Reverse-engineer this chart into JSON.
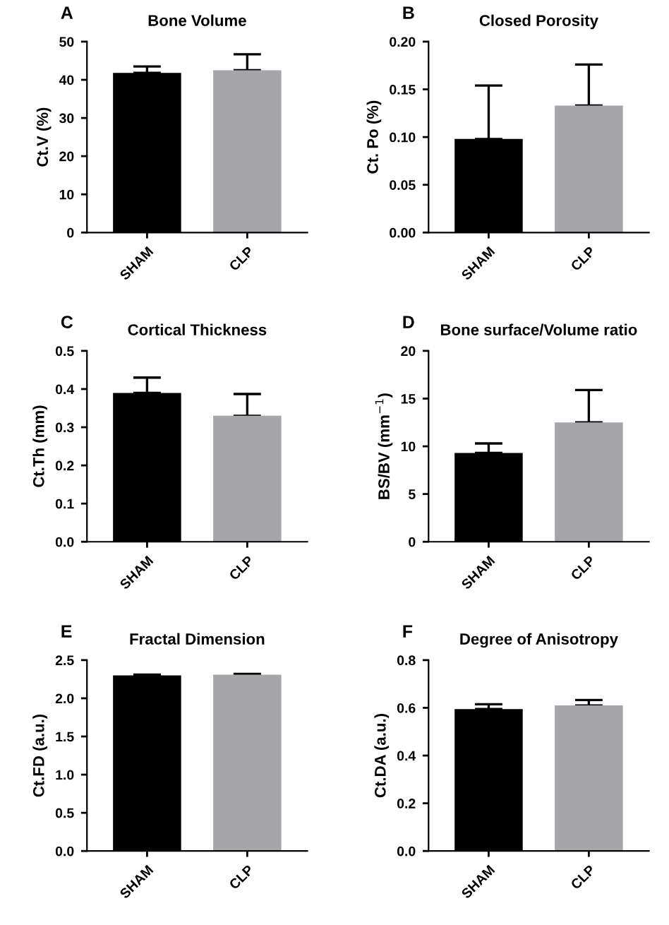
{
  "chart_data": [
    {
      "type": "bar",
      "title": "Bone Volume",
      "annotations": [
        "A"
      ],
      "ylabel": "Ct.V (%)",
      "categories": [
        "SHAM",
        "CLP"
      ],
      "values": [
        41.8,
        42.5
      ],
      "colors": [
        "#000000",
        "#a6a6a8"
      ],
      "errors": [
        [
          41.8,
          43.5
        ],
        [
          42.5,
          46.7
        ]
      ],
      "ylim": [
        0,
        50
      ],
      "yticks": [
        0,
        10,
        20,
        30,
        40,
        50
      ],
      "grid": false,
      "legend": false
    },
    {
      "type": "bar",
      "title": "Closed Porosity",
      "annotations": [
        "B"
      ],
      "ylabel": "Ct. Po (%)",
      "categories": [
        "SHAM",
        "CLP"
      ],
      "values": [
        0.098,
        0.133
      ],
      "colors": [
        "#000000",
        "#a6a6a8"
      ],
      "errors": [
        [
          0.098,
          0.154
        ],
        [
          0.133,
          0.176
        ]
      ],
      "ylim": [
        0,
        0.2
      ],
      "yticks": [
        {
          "value": 0,
          "label": "0.00"
        },
        {
          "value": 0.05,
          "label": "0.05"
        },
        {
          "value": 0.1,
          "label": "0.10"
        },
        {
          "value": 0.15,
          "label": "0.15"
        },
        {
          "value": 0.2,
          "label": "0.20"
        }
      ],
      "grid": false,
      "legend": false
    },
    {
      "type": "bar",
      "title": "Cortical Thickness",
      "annotations": [
        "C"
      ],
      "ylabel": "Ct.Th (mm)",
      "categories": [
        "SHAM",
        "CLP"
      ],
      "values": [
        0.39,
        0.33
      ],
      "colors": [
        "#000000",
        "#a6a6a8"
      ],
      "errors": [
        [
          0.39,
          0.43
        ],
        [
          0.33,
          0.387
        ]
      ],
      "ylim": [
        0,
        0.5
      ],
      "yticks": [
        {
          "value": 0,
          "label": "0.0"
        },
        0.1,
        0.2,
        0.3,
        0.4,
        0.5
      ],
      "grid": false,
      "legend": false
    },
    {
      "type": "bar",
      "title": "Bone surface/Volume ratio",
      "annotations": [
        "D"
      ],
      "ylabel": "BS/BV (mm$^{−1}$)",
      "categories": [
        "SHAM",
        "CLP"
      ],
      "values": [
        9.3,
        12.5
      ],
      "colors": [
        "#000000",
        "#a6a6a8"
      ],
      "errors": [
        [
          9.3,
          10.3
        ],
        [
          12.5,
          15.9
        ]
      ],
      "ylim": [
        0,
        20
      ],
      "yticks": [
        0,
        5,
        10,
        15,
        20
      ],
      "grid": false,
      "legend": false
    },
    {
      "type": "bar",
      "title": "Fractal Dimension",
      "annotations": [
        "E"
      ],
      "ylabel": "Ct.FD (a.u.)",
      "categories": [
        "SHAM",
        "CLP"
      ],
      "values": [
        2.3,
        2.31
      ],
      "colors": [
        "#000000",
        "#a6a6a8"
      ],
      "errors": [
        [
          2.3,
          2.31
        ],
        [
          2.31,
          2.32
        ]
      ],
      "ylim": [
        0,
        2.5
      ],
      "yticks": [
        {
          "value": 0,
          "label": "0.0"
        },
        0.5,
        {
          "value": 1,
          "label": "1.0"
        },
        1.5,
        {
          "value": 2,
          "label": "2.0"
        },
        2.5
      ],
      "grid": false,
      "legend": false
    },
    {
      "type": "bar",
      "title": "Degree of Anisotropy",
      "annotations": [
        "F"
      ],
      "ylabel": "Ct.DA (a.u.)",
      "categories": [
        "SHAM",
        "CLP"
      ],
      "values": [
        0.595,
        0.61
      ],
      "colors": [
        "#000000",
        "#a6a6a8"
      ],
      "errors": [
        [
          0.595,
          0.615
        ],
        [
          0.61,
          0.633
        ]
      ],
      "ylim": [
        0,
        0.8
      ],
      "yticks": [
        {
          "value": 0,
          "label": "0.0"
        },
        0.2,
        0.4,
        0.6,
        0.8
      ],
      "grid": false,
      "legend": false
    }
  ]
}
